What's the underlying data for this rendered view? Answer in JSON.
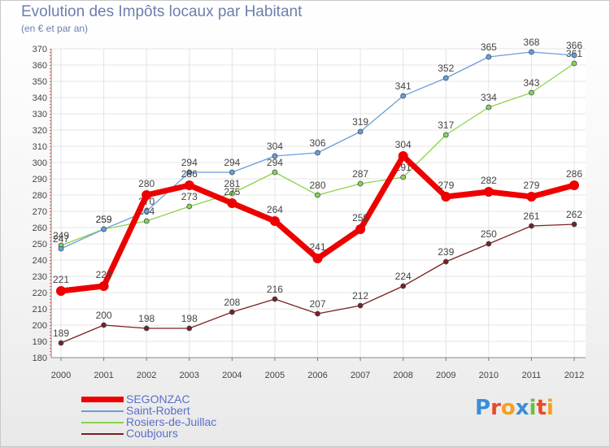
{
  "chart_data": {
    "type": "line",
    "title": "Evolution des Impôts locaux par Habitant",
    "subtitle": "(en € et par an)",
    "x": [
      "2000",
      "2001",
      "2002",
      "2003",
      "2004",
      "2005",
      "2006",
      "2007",
      "2008",
      "2009",
      "2010",
      "2011",
      "2012"
    ],
    "ylim": [
      180,
      370
    ],
    "yticks": [
      180,
      190,
      200,
      210,
      220,
      230,
      240,
      250,
      260,
      270,
      280,
      290,
      300,
      310,
      320,
      330,
      340,
      350,
      360,
      370
    ],
    "series": [
      {
        "name": "SEGONZAC",
        "color": "#ee0000",
        "values": [
          221,
          224,
          280,
          286,
          275,
          264,
          241,
          259,
          304,
          279,
          282,
          279,
          286
        ]
      },
      {
        "name": "Saint-Robert",
        "color": "#6a9fd8",
        "values": [
          247,
          259,
          270,
          294,
          294,
          304,
          306,
          319,
          341,
          352,
          365,
          368,
          366
        ]
      },
      {
        "name": "Rosiers-de-Juillac",
        "color": "#8cd44a",
        "values": [
          249,
          259,
          264,
          273,
          281,
          294,
          280,
          287,
          291,
          317,
          334,
          343,
          361
        ]
      },
      {
        "name": "Coubjours",
        "color": "#7a2020",
        "values": [
          189,
          200,
          198,
          198,
          208,
          216,
          207,
          212,
          224,
          239,
          250,
          261,
          262
        ]
      }
    ]
  },
  "logo": {
    "text": "Proxiti",
    "letters": [
      {
        "ch": "P",
        "color": "#3a8ed8"
      },
      {
        "ch": "r",
        "color": "#e84a2a"
      },
      {
        "ch": "o",
        "color": "#f4a020"
      },
      {
        "ch": "x",
        "color": "#3a8ed8"
      },
      {
        "ch": "i",
        "color": "#6cc040"
      },
      {
        "ch": "t",
        "color": "#e84a2a"
      },
      {
        "ch": "i",
        "color": "#f4a020"
      }
    ]
  }
}
